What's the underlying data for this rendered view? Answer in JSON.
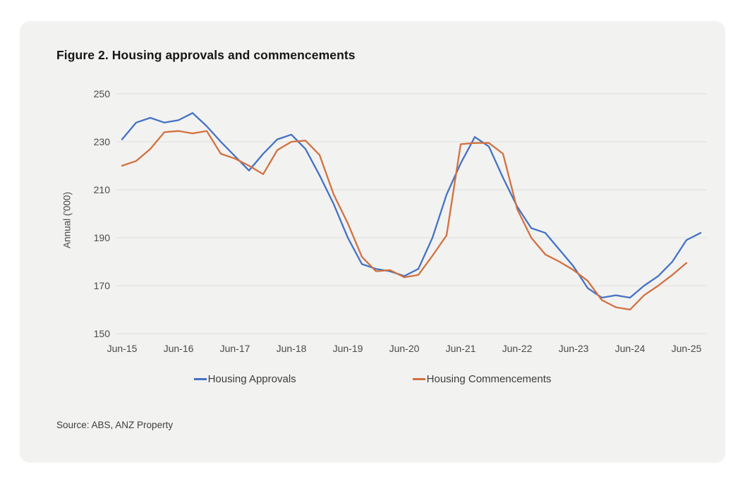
{
  "figure": {
    "title": "Figure 2. Housing approvals and commencements",
    "source": "Source: ABS, ANZ Property"
  },
  "colors": {
    "card_background": "#f2f2f1",
    "gridline": "#e3e3e0",
    "tick_text": "#4a4a4a",
    "title_text": "#161616"
  },
  "chart_data": {
    "type": "line",
    "title": "Figure 2. Housing approvals and commencements",
    "xlabel": "",
    "ylabel": "Annual ('000)",
    "ylim": [
      150,
      250
    ],
    "yticks": [
      250,
      230,
      210,
      190,
      170,
      150
    ],
    "x_tick_labels": [
      "Jun-15",
      "Jun-16",
      "Jun-17",
      "Jun-18",
      "Jun-19",
      "Jun-20",
      "Jun-21",
      "Jun-22",
      "Jun-23",
      "Jun-24",
      "Jun-25"
    ],
    "frequency": "quarterly",
    "x_start": "Jun-15",
    "grid": "horizontal",
    "legend_position": "bottom",
    "series": [
      {
        "name": "Housing Approvals",
        "color": "#4472c4",
        "values": [
          231,
          238,
          240,
          238,
          239,
          242,
          236.5,
          230,
          224,
          218,
          225,
          231,
          233,
          227,
          216,
          204,
          190,
          179,
          177,
          176,
          174,
          177,
          190,
          208,
          221,
          232,
          228,
          215,
          203,
          194,
          192,
          185,
          178,
          169,
          165,
          166,
          165,
          170,
          174,
          180,
          189,
          192
        ]
      },
      {
        "name": "Housing Commencements",
        "color": "#d2713f",
        "values": [
          220,
          222,
          227,
          234,
          234.5,
          233.5,
          234.5,
          225,
          223,
          220,
          216.5,
          226.5,
          230,
          230.5,
          224.5,
          208,
          196,
          182,
          176,
          176.5,
          173.5,
          174.5,
          182.5,
          191,
          229,
          229.5,
          229.5,
          225,
          202,
          190,
          183,
          180,
          176.5,
          172,
          164,
          161,
          160,
          166,
          170,
          174.5,
          179.5
        ]
      }
    ]
  }
}
